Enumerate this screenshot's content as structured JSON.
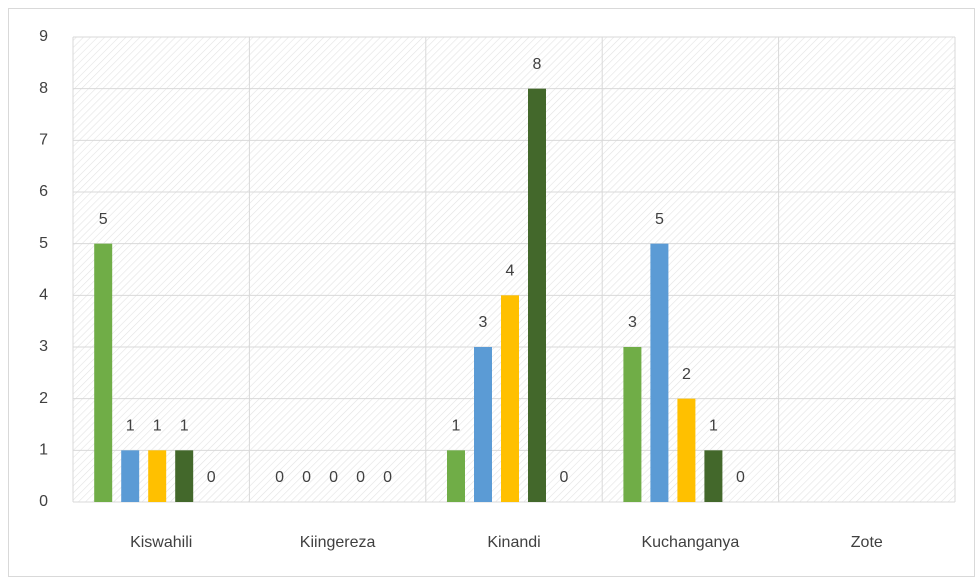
{
  "chart_data": {
    "type": "bar",
    "categories": [
      "Kiswahili",
      "Kiingereza",
      "Kinandi",
      "Kuchanganya",
      "Zote"
    ],
    "series": [
      {
        "color": "#70ad47",
        "values": [
          5,
          0,
          1,
          3,
          null
        ]
      },
      {
        "color": "#5b9bd5",
        "values": [
          1,
          0,
          3,
          5,
          null
        ]
      },
      {
        "color": "#ffc000",
        "values": [
          1,
          0,
          4,
          2,
          null
        ]
      },
      {
        "color": "#43682b",
        "values": [
          1,
          0,
          8,
          1,
          null
        ]
      },
      {
        "values": [
          0,
          0,
          0,
          0,
          null
        ]
      }
    ],
    "ylim": [
      0,
      9
    ],
    "yticks": [
      0,
      1,
      2,
      3,
      4,
      5,
      6,
      7,
      8,
      9
    ],
    "grid": true
  }
}
